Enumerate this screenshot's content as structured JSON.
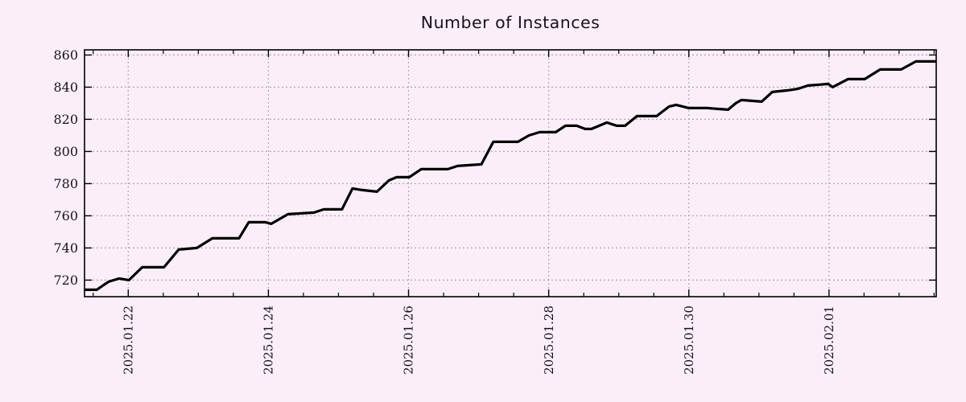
{
  "chart_data": {
    "type": "line",
    "title": "Number of Instances",
    "xlabel": "",
    "ylabel": "",
    "legend": "none",
    "grid": "dotted",
    "x_unit": "date",
    "x_day0": "2025-01-21",
    "x_range_days": [
      0.376,
      12.53
    ],
    "x_major_ticks": [
      {
        "t": 1,
        "label": "2025.01.22"
      },
      {
        "t": 3,
        "label": "2025.01.24"
      },
      {
        "t": 5,
        "label": "2025.01.26"
      },
      {
        "t": 7,
        "label": "2025.01.28"
      },
      {
        "t": 9,
        "label": "2025.01.30"
      },
      {
        "t": 11,
        "label": "2025.02.01"
      }
    ],
    "x_minor_tick_interval_days": 0.5,
    "ylim": [
      709.7,
      863.2
    ],
    "y_ticks": [
      720,
      740,
      760,
      780,
      800,
      820,
      840,
      860
    ],
    "series": [
      {
        "name": "instances",
        "points": [
          [
            0.38,
            714
          ],
          [
            0.55,
            714
          ],
          [
            0.72,
            719
          ],
          [
            0.87,
            721
          ],
          [
            1.01,
            720
          ],
          [
            1.2,
            728
          ],
          [
            1.51,
            728
          ],
          [
            1.72,
            739
          ],
          [
            1.98,
            740
          ],
          [
            2.2,
            746
          ],
          [
            2.58,
            746
          ],
          [
            2.72,
            756
          ],
          [
            2.96,
            756
          ],
          [
            3.04,
            755
          ],
          [
            3.28,
            761
          ],
          [
            3.65,
            762
          ],
          [
            3.79,
            764
          ],
          [
            4.05,
            764
          ],
          [
            4.2,
            777
          ],
          [
            4.34,
            776
          ],
          [
            4.55,
            775
          ],
          [
            4.72,
            782
          ],
          [
            4.83,
            784
          ],
          [
            5.01,
            784
          ],
          [
            5.18,
            789
          ],
          [
            5.56,
            789
          ],
          [
            5.7,
            791
          ],
          [
            6.04,
            792
          ],
          [
            6.21,
            806
          ],
          [
            6.56,
            806
          ],
          [
            6.72,
            810
          ],
          [
            6.87,
            812
          ],
          [
            7.1,
            812
          ],
          [
            7.24,
            816
          ],
          [
            7.4,
            816
          ],
          [
            7.52,
            814
          ],
          [
            7.61,
            814
          ],
          [
            7.83,
            818
          ],
          [
            7.97,
            816
          ],
          [
            8.09,
            816
          ],
          [
            8.26,
            822
          ],
          [
            8.54,
            822
          ],
          [
            8.72,
            828
          ],
          [
            8.82,
            829
          ],
          [
            9.0,
            827
          ],
          [
            9.26,
            827
          ],
          [
            9.56,
            826
          ],
          [
            9.67,
            830
          ],
          [
            9.75,
            832
          ],
          [
            10.04,
            831
          ],
          [
            10.19,
            837
          ],
          [
            10.41,
            838
          ],
          [
            10.56,
            839
          ],
          [
            10.7,
            841
          ],
          [
            10.99,
            842
          ],
          [
            11.05,
            840
          ],
          [
            11.27,
            845
          ],
          [
            11.51,
            845
          ],
          [
            11.73,
            851
          ],
          [
            12.03,
            851
          ],
          [
            12.24,
            856
          ],
          [
            12.53,
            856
          ]
        ]
      }
    ],
    "style": {
      "background_color": "#faeef9",
      "line_color": "#000000",
      "grid_color": "#a6a0a8",
      "axis_color": "#000000",
      "text_color": "#17121d"
    }
  }
}
